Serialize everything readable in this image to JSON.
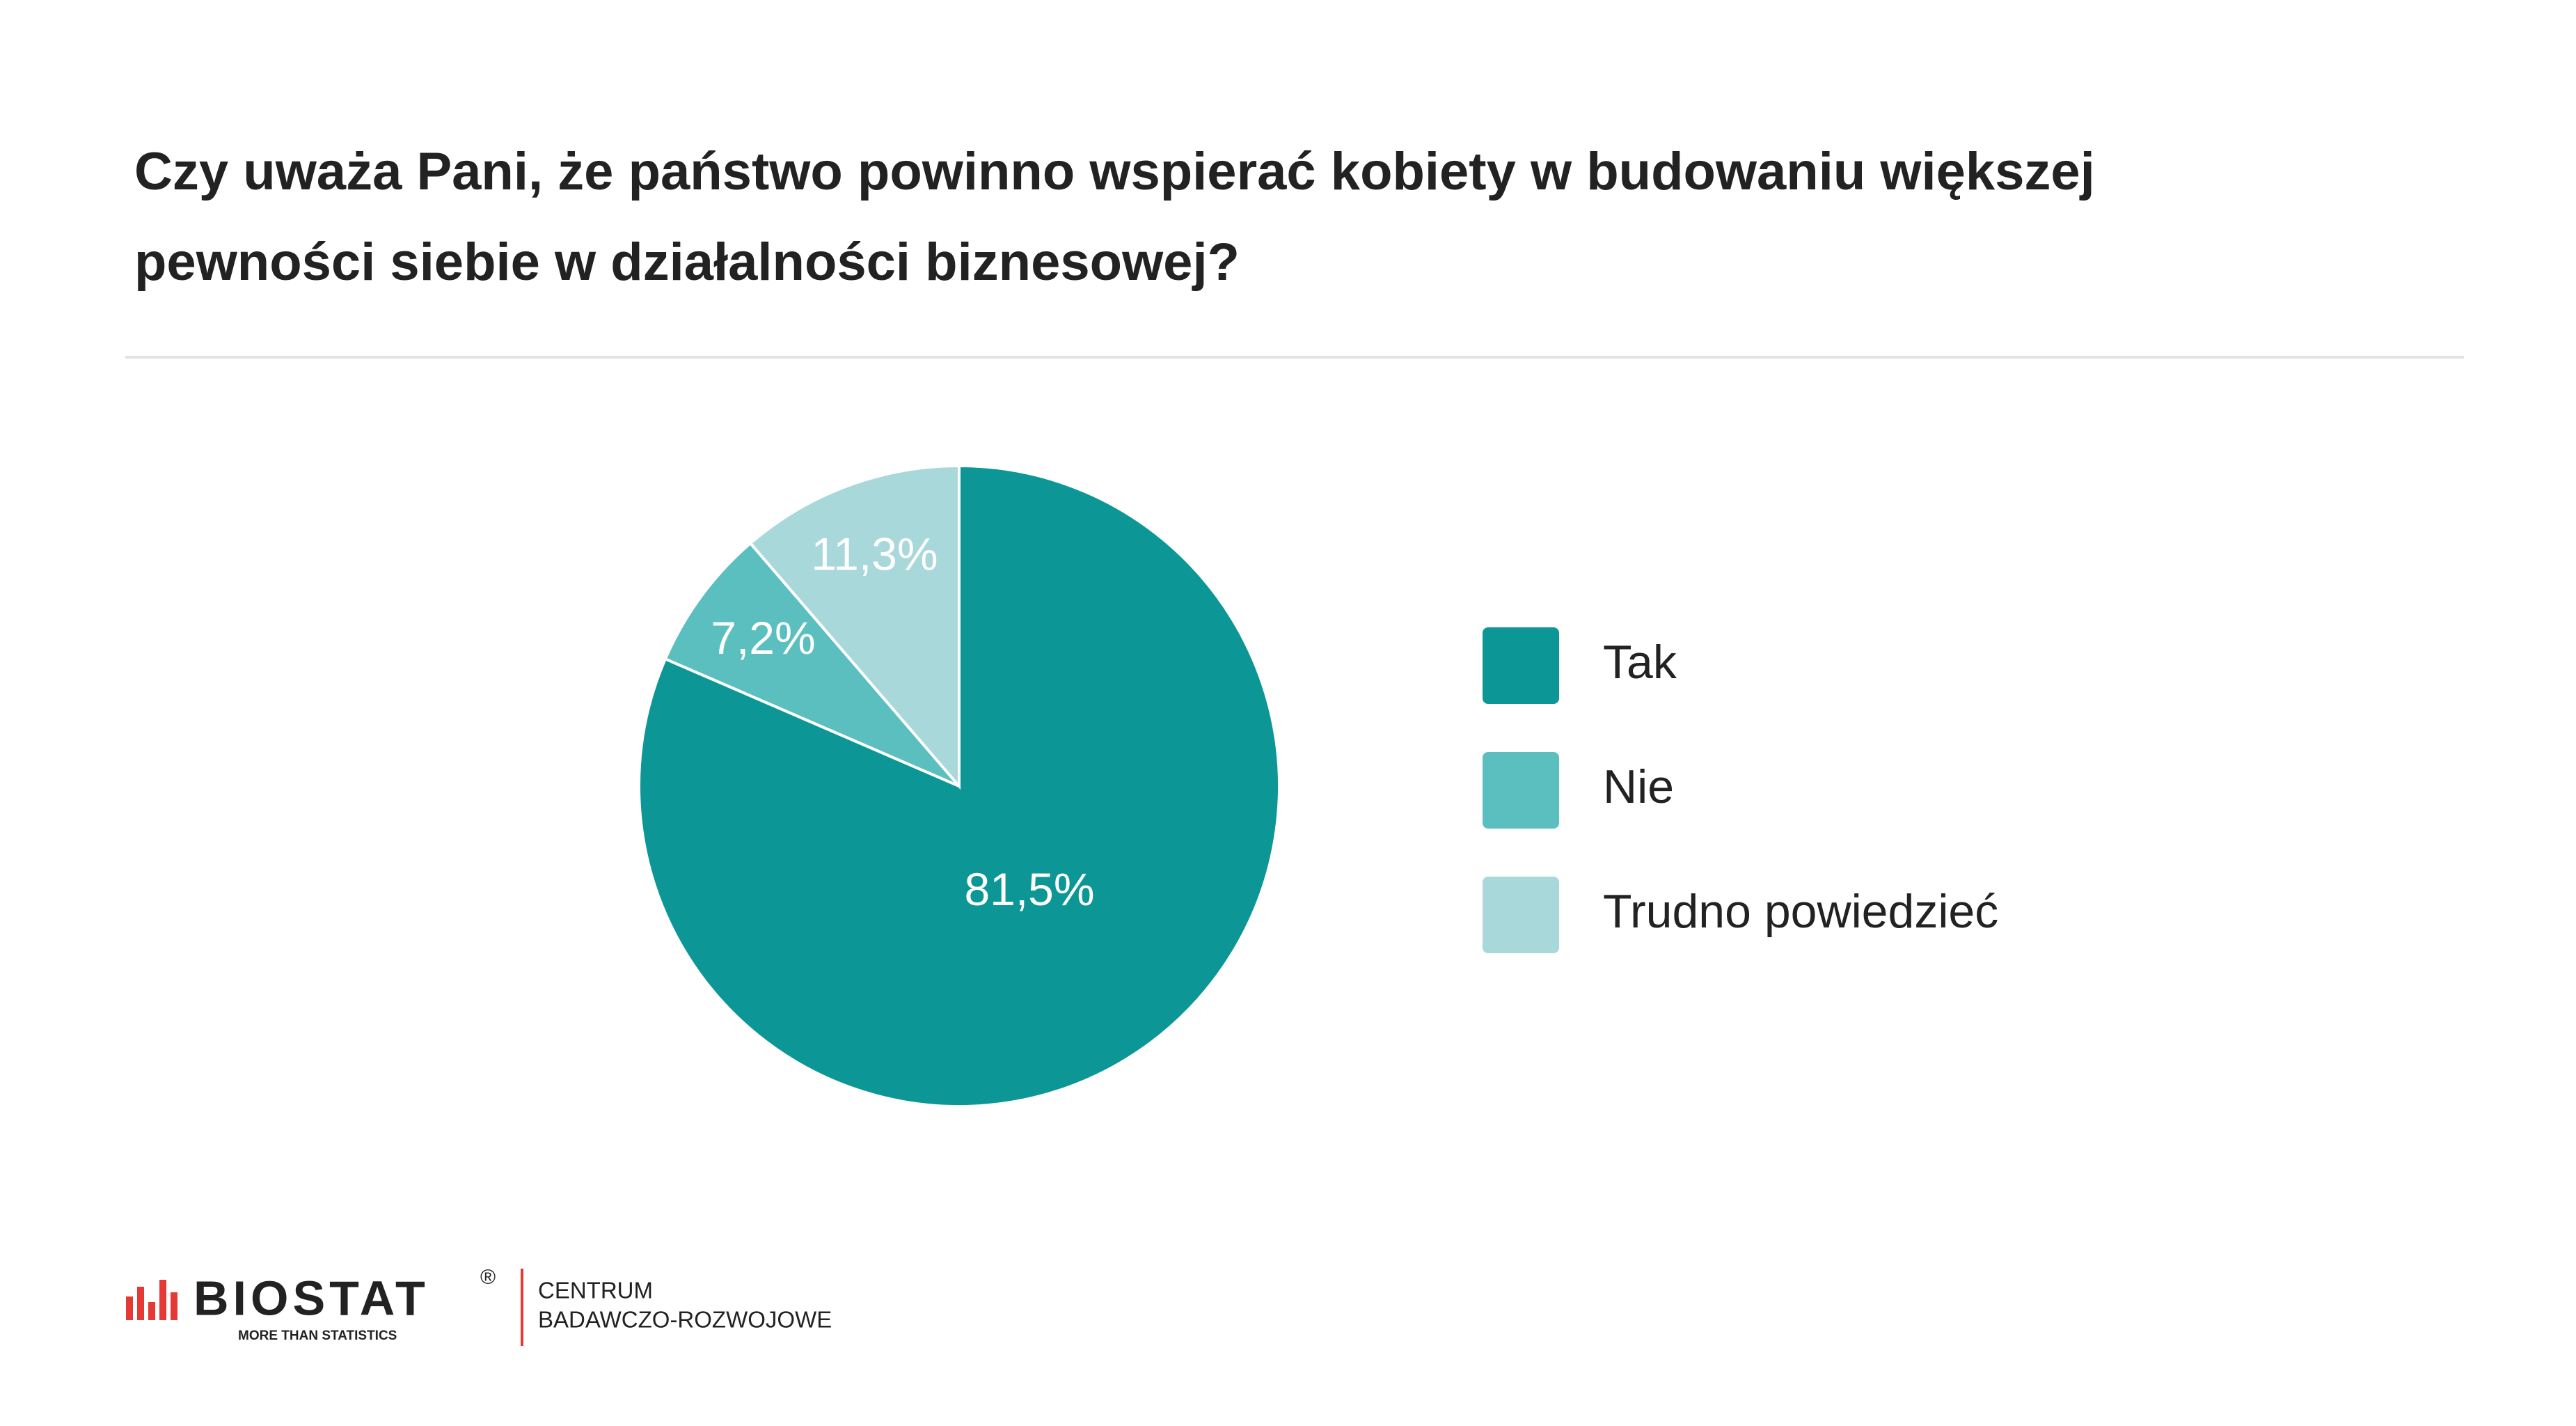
{
  "chart_data": {
    "type": "pie",
    "title": [
      "Czy uważa Pani, że państwo powinno wspierać kobiety w budowaniu większej",
      "pewności siebie w działalności biznesowej?"
    ],
    "categories": [
      "Tak",
      "Nie",
      "Trudno powiedzieć"
    ],
    "values": [
      81.5,
      7.2,
      11.3
    ],
    "value_labels": [
      "81,5%",
      "7,2%",
      "11,3%"
    ],
    "colors": [
      "#0c9696",
      "#5bbfbf",
      "#a8d8da"
    ],
    "legend": "right"
  },
  "footer": {
    "brand": "BIOSTAT",
    "registered": "®",
    "tagline": "MORE THAN STATISTICS",
    "unit": [
      "CENTRUM",
      "BADAWCZO-ROZWOJOWE"
    ]
  }
}
